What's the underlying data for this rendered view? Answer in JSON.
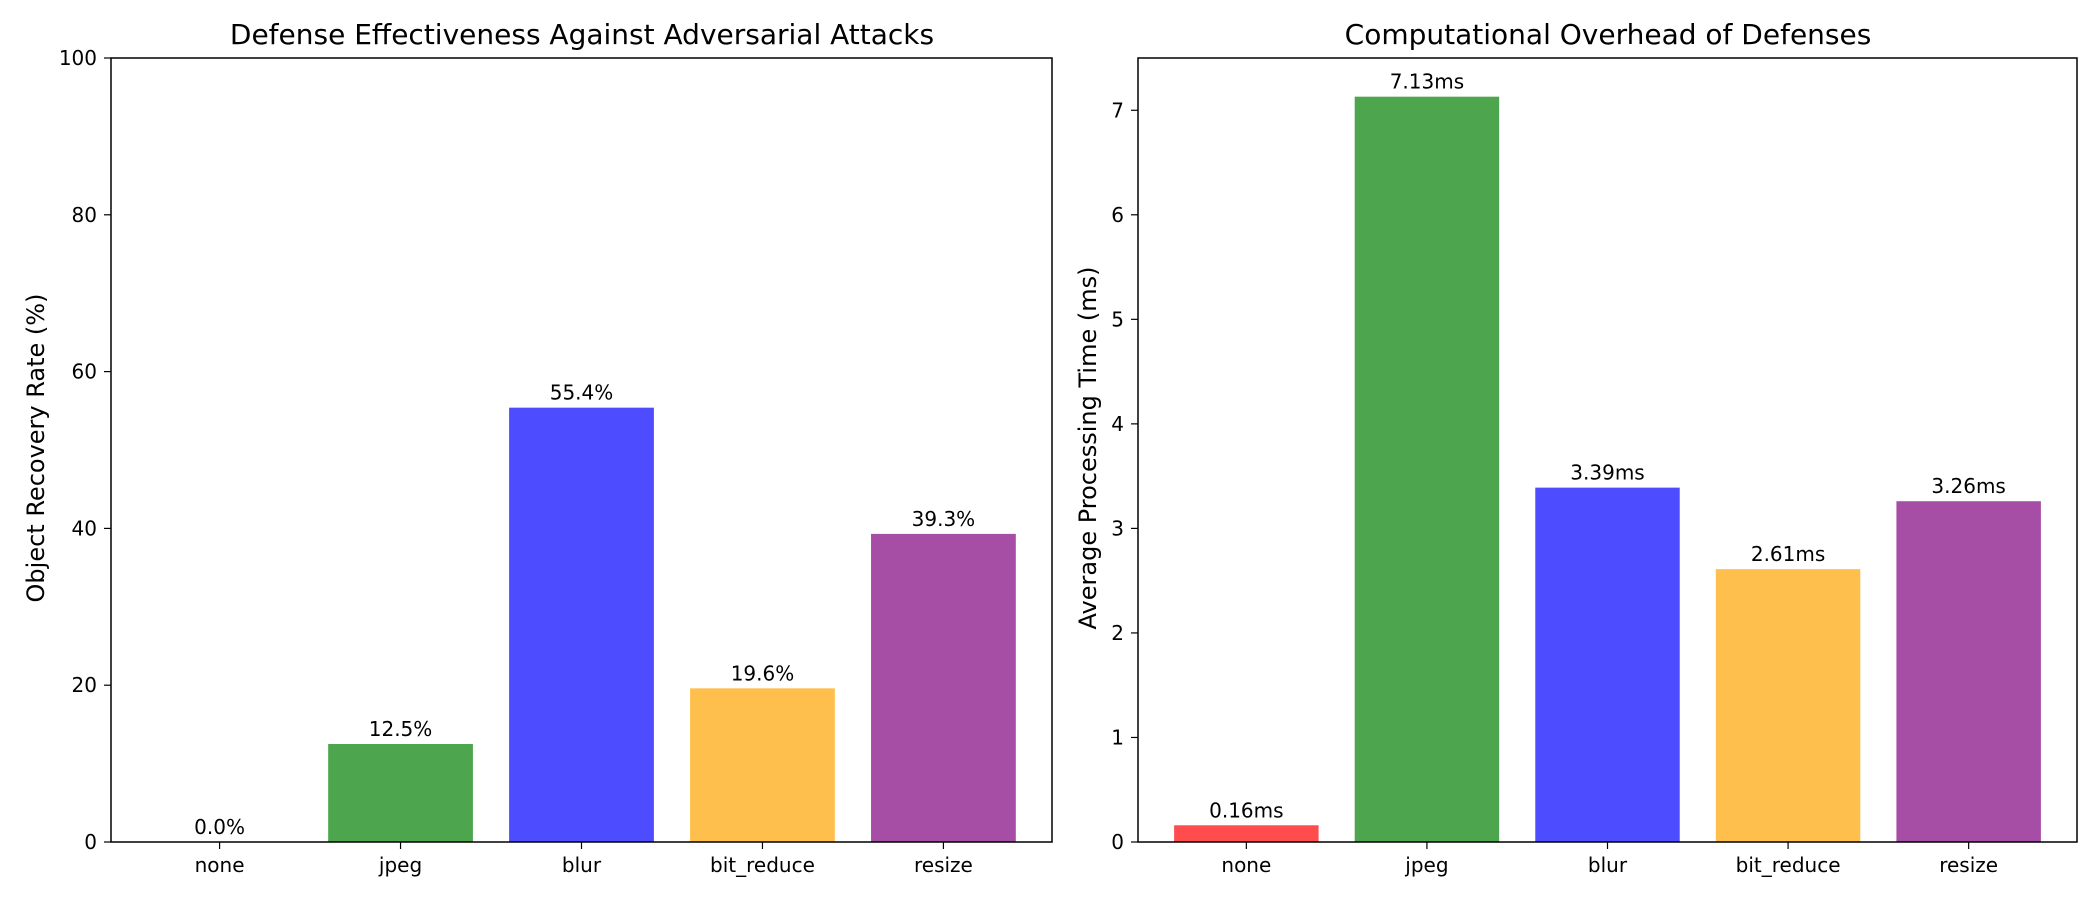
{
  "chart_data": [
    {
      "type": "bar",
      "title": "Defense Effectiveness Against Adversarial Attacks",
      "xlabel": "",
      "ylabel": "Object Recovery Rate (%)",
      "categories": [
        "none",
        "jpeg",
        "blur",
        "bit_reduce",
        "resize"
      ],
      "values": [
        0.0,
        12.5,
        55.4,
        19.6,
        39.3
      ],
      "value_labels": [
        "0.0%",
        "12.5%",
        "55.4%",
        "19.6%",
        "39.3%"
      ],
      "colors": [
        "#ff4d4d",
        "#4da64d",
        "#4d4dff",
        "#ffbf4d",
        "#a64da6"
      ],
      "ylim": [
        0,
        100
      ],
      "yticks": [
        0,
        20,
        40,
        60,
        80,
        100
      ],
      "ytick_labels": [
        "0",
        "20",
        "40",
        "60",
        "80",
        "100"
      ],
      "grid": false,
      "legend": "none"
    },
    {
      "type": "bar",
      "title": "Computational Overhead of Defenses",
      "xlabel": "",
      "ylabel": "Average Processing Time (ms)",
      "categories": [
        "none",
        "jpeg",
        "blur",
        "bit_reduce",
        "resize"
      ],
      "values": [
        0.16,
        7.13,
        3.39,
        2.61,
        3.26
      ],
      "value_labels": [
        "0.16ms",
        "7.13ms",
        "3.39ms",
        "2.61ms",
        "3.26ms"
      ],
      "colors": [
        "#ff4d4d",
        "#4da64d",
        "#4d4dff",
        "#ffbf4d",
        "#a64da6"
      ],
      "ylim": [
        0,
        7.5
      ],
      "yticks": [
        0,
        1,
        2,
        3,
        4,
        5,
        6,
        7
      ],
      "ytick_labels": [
        "0",
        "1",
        "2",
        "3",
        "4",
        "5",
        "6",
        "7"
      ],
      "grid": false,
      "legend": "none"
    }
  ]
}
